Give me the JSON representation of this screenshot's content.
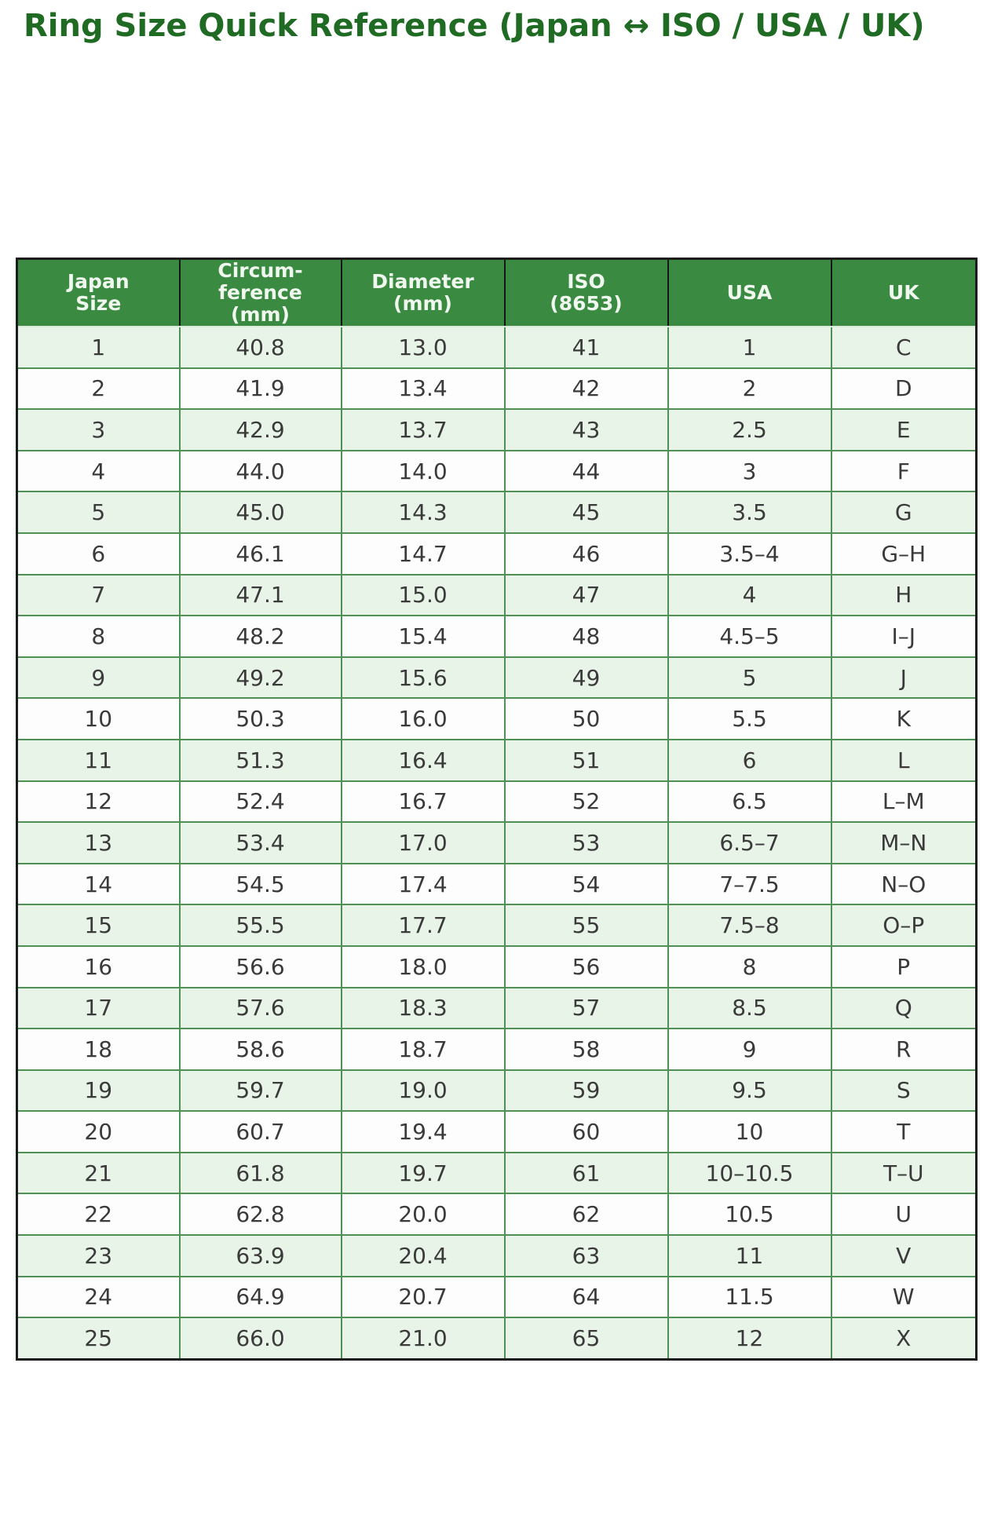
{
  "page": {
    "title": "Ring Size Quick Reference (Japan ↔ ISO / USA / UK)"
  },
  "colors": {
    "title_green": "#1f6b24",
    "header_bg": "#3a8a42",
    "header_text": "#eff7ef",
    "header_separator": "#161616",
    "outer_border": "#1c1c1c",
    "grid_green": "#4f9054",
    "row_stripe_green": "#e8f4e8",
    "row_white": "#fdfdfd",
    "cell_text": "#3a3a3a"
  },
  "table": {
    "headers": [
      "Japan\nSize",
      "Circum-\nference\n(mm)",
      "Diameter\n(mm)",
      "ISO\n(8653)",
      "USA",
      "UK"
    ],
    "rows": [
      [
        "1",
        "40.8",
        "13.0",
        "41",
        "1",
        "C"
      ],
      [
        "2",
        "41.9",
        "13.4",
        "42",
        "2",
        "D"
      ],
      [
        "3",
        "42.9",
        "13.7",
        "43",
        "2.5",
        "E"
      ],
      [
        "4",
        "44.0",
        "14.0",
        "44",
        "3",
        "F"
      ],
      [
        "5",
        "45.0",
        "14.3",
        "45",
        "3.5",
        "G"
      ],
      [
        "6",
        "46.1",
        "14.7",
        "46",
        "3.5–4",
        "G–H"
      ],
      [
        "7",
        "47.1",
        "15.0",
        "47",
        "4",
        "H"
      ],
      [
        "8",
        "48.2",
        "15.4",
        "48",
        "4.5–5",
        "I–J"
      ],
      [
        "9",
        "49.2",
        "15.6",
        "49",
        "5",
        "J"
      ],
      [
        "10",
        "50.3",
        "16.0",
        "50",
        "5.5",
        "K"
      ],
      [
        "11",
        "51.3",
        "16.4",
        "51",
        "6",
        "L"
      ],
      [
        "12",
        "52.4",
        "16.7",
        "52",
        "6.5",
        "L–M"
      ],
      [
        "13",
        "53.4",
        "17.0",
        "53",
        "6.5–7",
        "M–N"
      ],
      [
        "14",
        "54.5",
        "17.4",
        "54",
        "7–7.5",
        "N–O"
      ],
      [
        "15",
        "55.5",
        "17.7",
        "55",
        "7.5–8",
        "O–P"
      ],
      [
        "16",
        "56.6",
        "18.0",
        "56",
        "8",
        "P"
      ],
      [
        "17",
        "57.6",
        "18.3",
        "57",
        "8.5",
        "Q"
      ],
      [
        "18",
        "58.6",
        "18.7",
        "58",
        "9",
        "R"
      ],
      [
        "19",
        "59.7",
        "19.0",
        "59",
        "9.5",
        "S"
      ],
      [
        "20",
        "60.7",
        "19.4",
        "60",
        "10",
        "T"
      ],
      [
        "21",
        "61.8",
        "19.7",
        "61",
        "10–10.5",
        "T–U"
      ],
      [
        "22",
        "62.8",
        "20.0",
        "62",
        "10.5",
        "U"
      ],
      [
        "23",
        "63.9",
        "20.4",
        "63",
        "11",
        "V"
      ],
      [
        "24",
        "64.9",
        "20.7",
        "64",
        "11.5",
        "W"
      ],
      [
        "25",
        "66.0",
        "21.0",
        "65",
        "12",
        "X"
      ]
    ]
  }
}
